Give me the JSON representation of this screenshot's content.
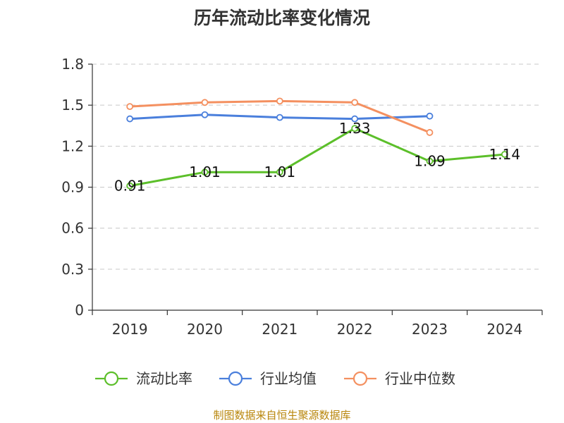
{
  "chart_data": {
    "type": "line",
    "title": "历年流动比率变化情况",
    "categories": [
      "2019",
      "2020",
      "2021",
      "2022",
      "2023",
      "2024"
    ],
    "ylim": [
      0,
      1.8
    ],
    "yticks": [
      "0",
      "0.3",
      "0.6",
      "0.9",
      "1.2",
      "1.5",
      "1.8"
    ],
    "grid": true,
    "legend_position": "bottom",
    "series": [
      {
        "name": "流动比率",
        "color": "#5cbf2a",
        "values": [
          0.91,
          1.01,
          1.01,
          1.33,
          1.09,
          1.14
        ],
        "labels": [
          "0.91",
          "1.01",
          "1.01",
          "1.33",
          "1.09",
          "1.14"
        ]
      },
      {
        "name": "行业均值",
        "color": "#4a7fdc",
        "values": [
          1.4,
          1.43,
          1.41,
          1.4,
          1.42,
          null
        ]
      },
      {
        "name": "行业中位数",
        "color": "#f49060",
        "values": [
          1.49,
          1.52,
          1.53,
          1.52,
          1.3,
          null
        ]
      }
    ]
  },
  "source_text": "制图数据来自恒生聚源数据库"
}
